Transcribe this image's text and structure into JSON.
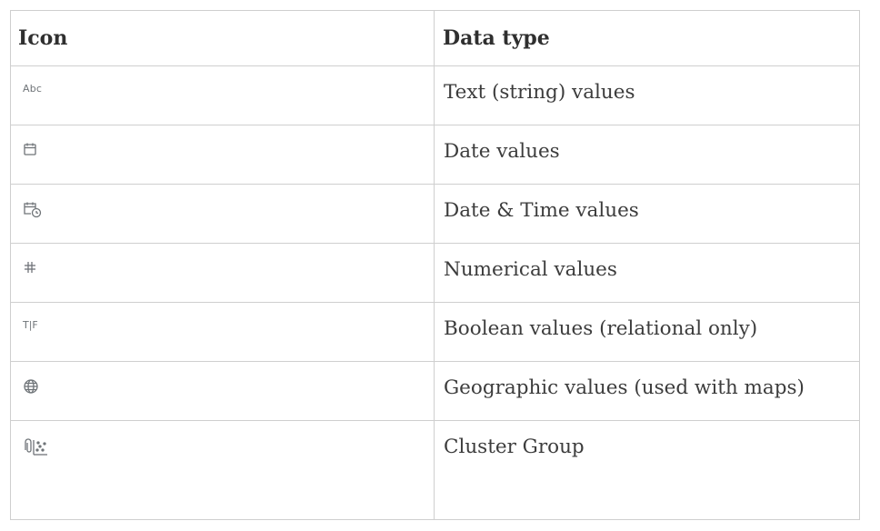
{
  "table": {
    "headers": {
      "icon": "Icon",
      "data_type": "Data type"
    },
    "rows": [
      {
        "icon": "abc-icon",
        "icon_text": "Abc",
        "label": "Text (string) values"
      },
      {
        "icon": "calendar-icon",
        "label": "Date values"
      },
      {
        "icon": "calendar-clock-icon",
        "label": "Date & Time values"
      },
      {
        "icon": "hash-icon",
        "label": "Numerical values"
      },
      {
        "icon": "true-false-icon",
        "icon_text": "T|F",
        "label": "Boolean values (relational only)"
      },
      {
        "icon": "globe-icon",
        "label": "Geographic values (used with maps)"
      },
      {
        "icon": "cluster-group-icon",
        "label": "Cluster Group"
      }
    ]
  },
  "colors": {
    "icon": "#6f7478",
    "border": "#cfcfcf",
    "text": "#3c3c3c"
  }
}
